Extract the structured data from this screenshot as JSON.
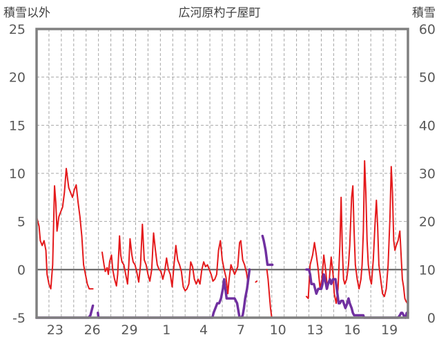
{
  "chart_data": {
    "type": "line",
    "title": "広河原杓子屋町",
    "ylabel_left": "積雪以外",
    "ylabel_right": "積雪",
    "ylim_left": [
      -5,
      25
    ],
    "ylim_right": [
      0,
      60
    ],
    "yticks_left": [
      "25",
      "20",
      "15",
      "10",
      "5",
      "0",
      "-5"
    ],
    "yticks_right": [
      "60",
      "50",
      "40",
      "30",
      "20",
      "10",
      "0"
    ],
    "xlim_days": [
      0,
      30
    ],
    "xticks": [
      {
        "day": 1.5,
        "label": "23"
      },
      {
        "day": 4.5,
        "label": "26"
      },
      {
        "day": 7.5,
        "label": "29"
      },
      {
        "day": 10.5,
        "label": "1"
      },
      {
        "day": 13.5,
        "label": "4"
      },
      {
        "day": 16.5,
        "label": "7"
      },
      {
        "day": 19.5,
        "label": "10"
      },
      {
        "day": 22.5,
        "label": "13"
      },
      {
        "day": 25.5,
        "label": "16"
      },
      {
        "day": 28.5,
        "label": "19"
      }
    ],
    "grid": "dashed horizontal every 5, dashed vertical daily",
    "colors": {
      "temperature": "#e41a1c",
      "snow": "#7030a0",
      "zero_line": "#595959",
      "frame": "#808080",
      "grid": "#a6a6a6"
    },
    "series": [
      {
        "role": "temperature",
        "axis": "left",
        "segments": [
          [
            [
              0.0,
              5.5
            ],
            [
              0.2,
              4.5
            ],
            [
              0.3,
              3.0
            ],
            [
              0.45,
              2.5
            ],
            [
              0.6,
              3.0
            ],
            [
              0.75,
              2.0
            ],
            [
              0.85,
              -0.5
            ],
            [
              1.0,
              -1.5
            ],
            [
              1.15,
              -2.0
            ],
            [
              1.3,
              0.5
            ],
            [
              1.45,
              8.7
            ],
            [
              1.55,
              7.0
            ],
            [
              1.65,
              4.0
            ],
            [
              1.8,
              5.5
            ],
            [
              1.95,
              6.0
            ],
            [
              2.1,
              6.5
            ],
            [
              2.25,
              8.0
            ],
            [
              2.4,
              10.5
            ],
            [
              2.5,
              9.5
            ],
            [
              2.6,
              8.5
            ],
            [
              2.75,
              8.0
            ],
            [
              2.9,
              7.5
            ],
            [
              3.05,
              8.3
            ],
            [
              3.2,
              8.8
            ],
            [
              3.35,
              7.0
            ],
            [
              3.5,
              5.5
            ],
            [
              3.65,
              3.5
            ],
            [
              3.8,
              0.5
            ],
            [
              3.95,
              -0.5
            ],
            [
              4.1,
              -1.5
            ],
            [
              4.25,
              -2.0
            ],
            [
              4.4,
              -2.0
            ],
            [
              4.55,
              -2.0
            ]
          ],
          [
            [
              5.3,
              1.8
            ],
            [
              5.45,
              0.5
            ],
            [
              5.55,
              -0.2
            ],
            [
              5.7,
              0.2
            ],
            [
              5.8,
              -0.5
            ],
            [
              5.9,
              0.8
            ],
            [
              6.05,
              1.5
            ],
            [
              6.15,
              0.0
            ],
            [
              6.3,
              -1.0
            ],
            [
              6.45,
              -1.7
            ],
            [
              6.55,
              -0.5
            ],
            [
              6.7,
              3.5
            ],
            [
              6.8,
              1.5
            ],
            [
              6.9,
              0.8
            ],
            [
              7.05,
              0.5
            ],
            [
              7.2,
              -0.5
            ],
            [
              7.35,
              -1.5
            ],
            [
              7.45,
              0.5
            ],
            [
              7.55,
              3.2
            ],
            [
              7.7,
              1.5
            ],
            [
              7.8,
              0.8
            ],
            [
              7.95,
              0.5
            ],
            [
              8.1,
              -0.3
            ],
            [
              8.25,
              -1.3
            ],
            [
              8.4,
              0.5
            ],
            [
              8.55,
              4.7
            ],
            [
              8.7,
              1.0
            ],
            [
              8.85,
              0.5
            ],
            [
              9.0,
              -0.5
            ],
            [
              9.15,
              -1.2
            ],
            [
              9.3,
              0.0
            ],
            [
              9.45,
              3.8
            ],
            [
              9.6,
              2.0
            ],
            [
              9.75,
              0.5
            ],
            [
              9.9,
              0.0
            ],
            [
              10.05,
              -0.2
            ],
            [
              10.2,
              -1.0
            ],
            [
              10.35,
              -0.2
            ],
            [
              10.5,
              1.2
            ],
            [
              10.65,
              0.0
            ],
            [
              10.8,
              -0.5
            ],
            [
              10.95,
              -1.8
            ],
            [
              11.1,
              0.5
            ],
            [
              11.25,
              2.5
            ],
            [
              11.4,
              1.0
            ],
            [
              11.55,
              0.5
            ],
            [
              11.7,
              -0.2
            ],
            [
              11.85,
              -1.8
            ],
            [
              12.0,
              -2.2
            ],
            [
              12.15,
              -2.0
            ],
            [
              12.3,
              -1.5
            ],
            [
              12.45,
              0.8
            ],
            [
              12.6,
              0.3
            ],
            [
              12.75,
              -1.0
            ],
            [
              12.9,
              -1.5
            ],
            [
              13.05,
              -1.0
            ],
            [
              13.2,
              -1.5
            ],
            [
              13.35,
              0.0
            ],
            [
              13.5,
              0.8
            ],
            [
              13.65,
              0.3
            ],
            [
              13.8,
              0.5
            ],
            [
              13.95,
              0.0
            ],
            [
              14.1,
              -0.5
            ],
            [
              14.25,
              -1.2
            ],
            [
              14.4,
              -1.0
            ],
            [
              14.55,
              -0.5
            ],
            [
              14.7,
              2.0
            ],
            [
              14.85,
              3.0
            ],
            [
              15.0,
              1.0
            ],
            [
              15.15,
              0.0
            ],
            [
              15.3,
              -0.8
            ],
            [
              15.45,
              -2.5
            ],
            [
              15.55,
              -1.0
            ],
            [
              15.7,
              0.5
            ],
            [
              15.85,
              0.0
            ],
            [
              16.0,
              -0.5
            ],
            [
              16.1,
              -0.2
            ],
            [
              16.25,
              0.3
            ],
            [
              16.4,
              2.8
            ],
            [
              16.5,
              3.0
            ],
            [
              16.65,
              1.0
            ],
            [
              16.8,
              0.5
            ],
            [
              16.95,
              -0.3
            ],
            [
              17.1,
              -1.5
            ]
          ],
          [
            [
              17.7,
              -1.3
            ],
            [
              17.8,
              -1.2
            ]
          ],
          [
            [
              18.6,
              0.0
            ],
            [
              18.7,
              -1.0
            ],
            [
              18.8,
              -2.5
            ],
            [
              18.9,
              -4.0
            ],
            [
              19.0,
              -5.0
            ]
          ],
          [
            [
              21.8,
              -2.8
            ],
            [
              21.95,
              -3.0
            ],
            [
              22.1,
              0.5
            ],
            [
              22.3,
              1.5
            ],
            [
              22.45,
              2.8
            ],
            [
              22.6,
              1.5
            ],
            [
              22.75,
              0.0
            ],
            [
              22.9,
              -2.0
            ],
            [
              23.05,
              -1.0
            ],
            [
              23.2,
              1.5
            ],
            [
              23.35,
              0.0
            ],
            [
              23.5,
              -2.0
            ],
            [
              23.65,
              -1.0
            ],
            [
              23.8,
              1.3
            ],
            [
              23.95,
              -0.5
            ],
            [
              24.05,
              -2.5
            ],
            [
              24.2,
              -3.5
            ],
            [
              24.35,
              -2.0
            ],
            [
              24.5,
              2.5
            ],
            [
              24.6,
              7.5
            ],
            [
              24.7,
              2.0
            ],
            [
              24.8,
              -1.0
            ],
            [
              24.9,
              -1.5
            ],
            [
              25.05,
              -1.0
            ],
            [
              25.2,
              0.5
            ],
            [
              25.3,
              2.5
            ],
            [
              25.45,
              7.5
            ],
            [
              25.55,
              8.7
            ],
            [
              25.65,
              4.0
            ],
            [
              25.75,
              0.5
            ],
            [
              25.9,
              -1.0
            ],
            [
              26.05,
              -2.0
            ],
            [
              26.2,
              -1.0
            ],
            [
              26.3,
              0.5
            ],
            [
              26.4,
              4.0
            ],
            [
              26.5,
              11.3
            ],
            [
              26.6,
              8.0
            ],
            [
              26.7,
              3.0
            ],
            [
              26.8,
              0.5
            ],
            [
              26.95,
              -1.0
            ],
            [
              27.05,
              -1.5
            ],
            [
              27.2,
              1.0
            ],
            [
              27.35,
              5.0
            ],
            [
              27.45,
              7.2
            ],
            [
              27.55,
              4.5
            ],
            [
              27.65,
              0.5
            ],
            [
              27.8,
              -1.0
            ],
            [
              27.95,
              -2.5
            ],
            [
              28.1,
              -2.8
            ],
            [
              28.25,
              -2.0
            ],
            [
              28.4,
              0.5
            ],
            [
              28.55,
              5.5
            ],
            [
              28.65,
              10.7
            ],
            [
              28.75,
              8.0
            ],
            [
              28.85,
              3.0
            ],
            [
              28.95,
              2.0
            ],
            [
              29.05,
              2.5
            ],
            [
              29.2,
              3.0
            ],
            [
              29.35,
              4.0
            ],
            [
              29.45,
              1.5
            ],
            [
              29.55,
              -1.0
            ],
            [
              29.65,
              -1.8
            ],
            [
              29.75,
              -3.0
            ],
            [
              29.85,
              -3.3
            ],
            [
              29.95,
              -3.5
            ]
          ]
        ]
      },
      {
        "role": "snow",
        "axis": "right",
        "segments": [
          [
            [
              0.0,
              0.0
            ],
            [
              4.2,
              0.0
            ],
            [
              4.35,
              0.5
            ],
            [
              4.5,
              2.0
            ],
            [
              4.55,
              2.5
            ]
          ],
          [
            [
              4.95,
              1.0
            ],
            [
              5.0,
              0.0
            ],
            [
              14.2,
              0.0
            ],
            [
              14.3,
              1.0
            ],
            [
              14.45,
              2.0
            ],
            [
              14.6,
              3.0
            ],
            [
              14.75,
              3.0
            ],
            [
              14.9,
              4.0
            ],
            [
              15.05,
              6.0
            ],
            [
              15.15,
              8.0
            ],
            [
              15.25,
              6.0
            ],
            [
              15.35,
              4.0
            ],
            [
              16.0,
              4.0
            ],
            [
              16.2,
              3.0
            ],
            [
              16.4,
              0.0
            ],
            [
              16.55,
              0.0
            ],
            [
              16.65,
              0.5
            ],
            [
              16.75,
              2.0
            ],
            [
              16.85,
              4.0
            ],
            [
              17.0,
              6.0
            ],
            [
              17.1,
              8.0
            ],
            [
              17.2,
              10.0
            ]
          ],
          [
            [
              18.25,
              17.0
            ],
            [
              18.35,
              16.0
            ],
            [
              18.5,
              14.0
            ],
            [
              18.65,
              11.0
            ],
            [
              19.05,
              11.0
            ]
          ],
          [
            [
              21.8,
              10.0
            ],
            [
              22.0,
              10.0
            ],
            [
              22.1,
              9.0
            ],
            [
              22.2,
              7.0
            ],
            [
              22.4,
              7.0
            ],
            [
              22.5,
              6.0
            ],
            [
              22.6,
              5.0
            ],
            [
              22.75,
              6.0
            ],
            [
              23.0,
              6.0
            ],
            [
              23.1,
              7.0
            ],
            [
              23.2,
              9.0
            ],
            [
              23.3,
              8.0
            ],
            [
              23.45,
              6.0
            ],
            [
              23.55,
              7.0
            ],
            [
              23.7,
              8.0
            ],
            [
              23.8,
              7.0
            ],
            [
              23.95,
              8.0
            ],
            [
              24.15,
              8.0
            ],
            [
              24.3,
              5.0
            ],
            [
              24.4,
              3.0
            ],
            [
              24.5,
              3.0
            ],
            [
              24.6,
              3.5
            ],
            [
              24.75,
              3.5
            ],
            [
              24.95,
              2.0
            ],
            [
              25.1,
              3.0
            ],
            [
              25.2,
              4.0
            ],
            [
              25.3,
              3.0
            ],
            [
              25.45,
              2.0
            ],
            [
              25.55,
              1.0
            ],
            [
              25.65,
              0.5
            ],
            [
              26.4,
              0.5
            ],
            [
              26.45,
              0.0
            ],
            [
              29.2,
              0.0
            ],
            [
              29.35,
              0.5
            ],
            [
              29.45,
              1.0
            ],
            [
              29.55,
              1.0
            ],
            [
              29.65,
              0.5
            ],
            [
              29.8,
              0.0
            ],
            [
              29.9,
              1.0
            ],
            [
              30.0,
              1.0
            ]
          ]
        ]
      }
    ]
  }
}
